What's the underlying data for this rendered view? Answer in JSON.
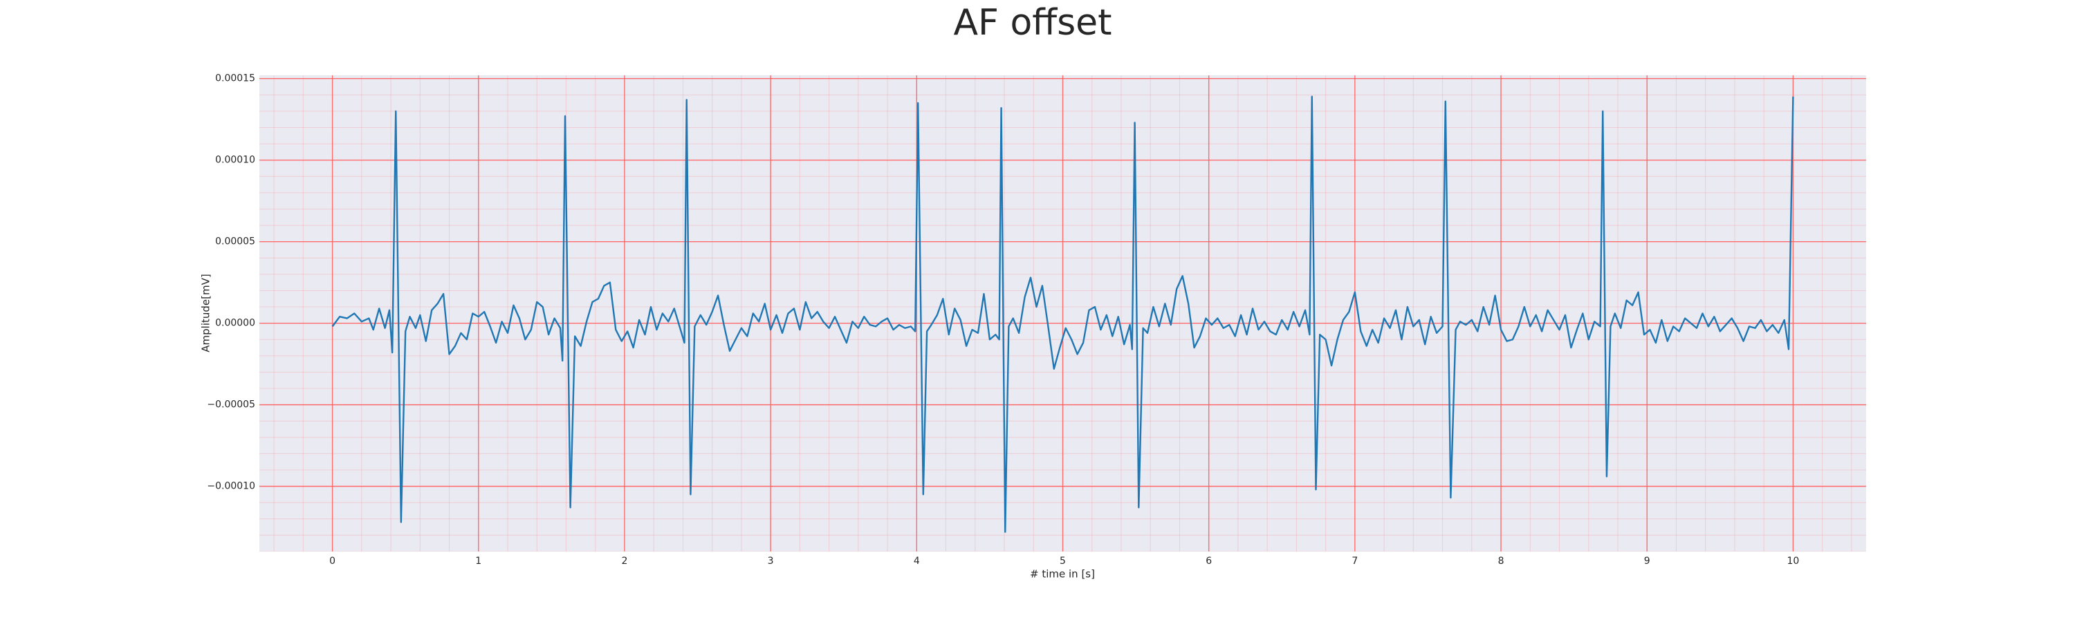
{
  "chart_data": {
    "type": "line",
    "title": "AF offset",
    "xlabel": "# time in [s]",
    "ylabel": "Amplitude[mV]",
    "xlim": [
      -0.5,
      10.5
    ],
    "ylim": [
      -0.00014,
      0.000152
    ],
    "xticks": [
      0,
      1,
      2,
      3,
      4,
      5,
      6,
      7,
      8,
      9,
      10
    ],
    "yticks": [
      {
        "value": -0.0001,
        "label": "−0.00010"
      },
      {
        "value": -5e-05,
        "label": "−0.00005"
      },
      {
        "value": 0,
        "label": "0.00000"
      },
      {
        "value": 5e-05,
        "label": "0.00005"
      },
      {
        "value": 0.0001,
        "label": "0.00010"
      },
      {
        "value": 0.00015,
        "label": "0.00015"
      }
    ],
    "grid": true,
    "grid_color": "#ff6b6b",
    "minor_grid": true,
    "background": "#eaeaf2",
    "series": [
      {
        "color": "#1f77b4",
        "x": [
          0,
          0.05,
          0.1,
          0.15,
          0.2,
          0.25,
          0.28,
          0.32,
          0.36,
          0.39,
          0.41,
          0.434,
          0.47,
          0.5,
          0.53,
          0.57,
          0.6,
          0.64,
          0.68,
          0.72,
          0.76,
          0.8,
          0.84,
          0.88,
          0.92,
          0.96,
          1.0,
          1.04,
          1.08,
          1.12,
          1.16,
          1.2,
          1.24,
          1.28,
          1.32,
          1.36,
          1.4,
          1.44,
          1.48,
          1.52,
          1.56,
          1.575,
          1.593,
          1.629,
          1.66,
          1.7,
          1.74,
          1.78,
          1.82,
          1.86,
          1.9,
          1.94,
          1.98,
          2.02,
          2.06,
          2.1,
          2.14,
          2.18,
          2.22,
          2.26,
          2.3,
          2.34,
          2.38,
          2.41,
          2.425,
          2.452,
          2.48,
          2.52,
          2.56,
          2.6,
          2.64,
          2.68,
          2.72,
          2.76,
          2.8,
          2.84,
          2.88,
          2.92,
          2.96,
          3.0,
          3.04,
          3.08,
          3.12,
          3.16,
          3.2,
          3.24,
          3.28,
          3.32,
          3.36,
          3.4,
          3.44,
          3.48,
          3.52,
          3.56,
          3.6,
          3.64,
          3.68,
          3.72,
          3.76,
          3.8,
          3.84,
          3.88,
          3.92,
          3.96,
          3.99,
          4.009,
          4.045,
          4.07,
          4.1,
          4.14,
          4.18,
          4.22,
          4.26,
          4.3,
          4.34,
          4.38,
          4.42,
          4.46,
          4.5,
          4.54,
          4.565,
          4.579,
          4.606,
          4.63,
          4.66,
          4.7,
          4.74,
          4.78,
          4.82,
          4.86,
          4.9,
          4.94,
          4.98,
          5.02,
          5.06,
          5.1,
          5.14,
          5.18,
          5.22,
          5.26,
          5.3,
          5.34,
          5.38,
          5.42,
          5.46,
          5.475,
          5.493,
          5.52,
          5.55,
          5.58,
          5.62,
          5.66,
          5.7,
          5.74,
          5.78,
          5.82,
          5.86,
          5.9,
          5.94,
          5.98,
          6.02,
          6.06,
          6.1,
          6.14,
          6.18,
          6.22,
          6.26,
          6.3,
          6.34,
          6.38,
          6.42,
          6.46,
          6.5,
          6.54,
          6.58,
          6.62,
          6.66,
          6.69,
          6.706,
          6.733,
          6.76,
          6.8,
          6.84,
          6.88,
          6.92,
          6.96,
          7.0,
          7.04,
          7.08,
          7.12,
          7.16,
          7.2,
          7.24,
          7.28,
          7.32,
          7.36,
          7.4,
          7.44,
          7.48,
          7.52,
          7.56,
          7.6,
          7.62,
          7.656,
          7.69,
          7.72,
          7.76,
          7.8,
          7.84,
          7.88,
          7.92,
          7.96,
          8.0,
          8.04,
          8.08,
          8.12,
          8.16,
          8.2,
          8.24,
          8.28,
          8.32,
          8.36,
          8.4,
          8.44,
          8.48,
          8.52,
          8.56,
          8.6,
          8.64,
          8.68,
          8.697,
          8.724,
          8.75,
          8.78,
          8.82,
          8.86,
          8.9,
          8.94,
          8.98,
          9.02,
          9.06,
          9.1,
          9.14,
          9.18,
          9.22,
          9.26,
          9.3,
          9.34,
          9.38,
          9.42,
          9.46,
          9.5,
          9.54,
          9.58,
          9.62,
          9.66,
          9.7,
          9.74,
          9.78,
          9.82,
          9.86,
          9.9,
          9.94,
          9.97,
          10.0
        ],
        "values": [
          -2e-06,
          4e-06,
          3e-06,
          6e-06,
          1e-06,
          3e-06,
          -4e-06,
          9e-06,
          -3e-06,
          8e-06,
          -1.8e-05,
          0.00013,
          -0.000122,
          -5e-06,
          4e-06,
          -3e-06,
          5e-06,
          -1.1e-05,
          8e-06,
          1.2e-05,
          1.8e-05,
          -1.9e-05,
          -1.4e-05,
          -6e-06,
          -1e-05,
          6e-06,
          4e-06,
          7e-06,
          -2e-06,
          -1.2e-05,
          1e-06,
          -6e-06,
          1.1e-05,
          3e-06,
          -1e-05,
          -4e-06,
          1.3e-05,
          1e-05,
          -7e-06,
          3e-06,
          -3e-06,
          -2.3e-05,
          0.000127,
          -0.000113,
          -8e-06,
          -1.4e-05,
          1e-06,
          1.3e-05,
          1.5e-05,
          2.3e-05,
          2.5e-05,
          -4e-06,
          -1.1e-05,
          -5e-06,
          -1.5e-05,
          2e-06,
          -7e-06,
          1e-05,
          -4e-06,
          6e-06,
          1e-06,
          9e-06,
          -3e-06,
          -1.2e-05,
          0.000137,
          -0.000105,
          -2e-06,
          5e-06,
          -1e-06,
          7e-06,
          1.7e-05,
          -1e-06,
          -1.7e-05,
          -1e-05,
          -3e-06,
          -8e-06,
          6e-06,
          1e-06,
          1.2e-05,
          -4e-06,
          5e-06,
          -6e-06,
          6e-06,
          9e-06,
          -4e-06,
          1.3e-05,
          3e-06,
          7e-06,
          1e-06,
          -3e-06,
          4e-06,
          -4e-06,
          -1.2e-05,
          1e-06,
          -3e-06,
          4e-06,
          -1e-06,
          -2e-06,
          1e-06,
          3e-06,
          -4e-06,
          -1e-06,
          -3e-06,
          -2e-06,
          -5e-06,
          0.000135,
          -0.000105,
          -5e-06,
          -1e-06,
          5e-06,
          1.5e-05,
          -7e-06,
          9e-06,
          2e-06,
          -1.4e-05,
          -4e-06,
          -6e-06,
          1.8e-05,
          -1e-05,
          -7e-06,
          -1e-05,
          0.000132,
          -0.000128,
          -2e-06,
          3e-06,
          -6e-06,
          1.6e-05,
          2.8e-05,
          1e-05,
          2.3e-05,
          -2e-06,
          -2.8e-05,
          -1.5e-05,
          -3e-06,
          -1e-05,
          -1.9e-05,
          -1.2e-05,
          8e-06,
          1e-05,
          -4e-06,
          5e-06,
          -8e-06,
          4e-06,
          -1.3e-05,
          -1e-06,
          -1.6e-05,
          0.000123,
          -0.000113,
          -3e-06,
          -6e-06,
          1e-05,
          -2e-06,
          1.2e-05,
          -1e-06,
          2.1e-05,
          2.9e-05,
          1.2e-05,
          -1.5e-05,
          -8e-06,
          3e-06,
          -1e-06,
          3e-06,
          -3e-06,
          -1e-06,
          -8e-06,
          5e-06,
          -7e-06,
          9e-06,
          -4e-06,
          1e-06,
          -5e-06,
          -7e-06,
          2e-06,
          -4e-06,
          7e-06,
          -2e-06,
          8e-06,
          -7e-06,
          0.000139,
          -0.000102,
          -7e-06,
          -1e-05,
          -2.6e-05,
          -1e-05,
          2e-06,
          7e-06,
          1.9e-05,
          -5e-06,
          -1.4e-05,
          -4e-06,
          -1.2e-05,
          3e-06,
          -3e-06,
          8e-06,
          -1e-05,
          1e-05,
          -2e-06,
          2e-06,
          -1.3e-05,
          4e-06,
          -6e-06,
          -2e-06,
          0.000136,
          -0.000107,
          -4e-06,
          1e-06,
          -1e-06,
          2e-06,
          -5e-06,
          1e-05,
          -1e-06,
          1.7e-05,
          -4e-06,
          -1.1e-05,
          -1e-05,
          -2e-06,
          1e-05,
          -2e-06,
          5e-06,
          -5e-06,
          8e-06,
          2e-06,
          -4e-06,
          5e-06,
          -1.5e-05,
          -4e-06,
          6e-06,
          -1e-05,
          1e-06,
          -2e-06,
          0.00013,
          -9.4e-05,
          -2e-06,
          6e-06,
          -3e-06,
          1.4e-05,
          1.1e-05,
          1.9e-05,
          -7e-06,
          -4e-06,
          -1.2e-05,
          2e-06,
          -1.1e-05,
          -2e-06,
          -5e-06,
          3e-06,
          0,
          -3e-06,
          6e-06,
          -2e-06,
          4e-06,
          -5e-06,
          -1e-06,
          3e-06,
          -3e-06,
          -1.1e-05,
          -2e-06,
          -3e-06,
          2e-06,
          -5e-06,
          -1e-06,
          -6e-06,
          2e-06,
          -1.6e-05,
          0.000139
        ]
      }
    ]
  }
}
